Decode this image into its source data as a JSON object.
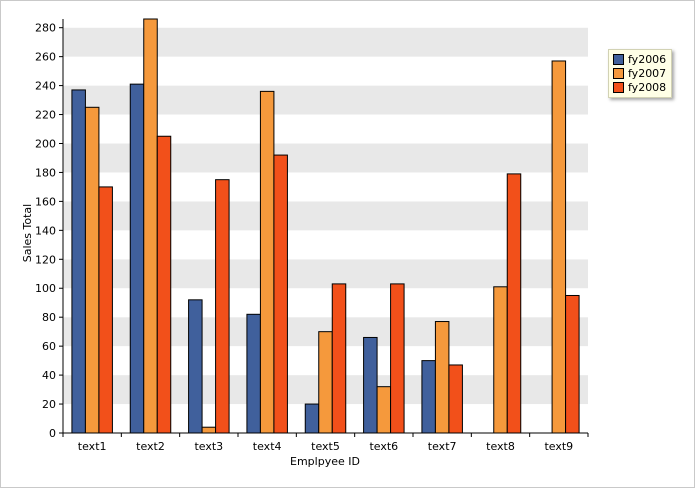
{
  "chart_data": {
    "type": "bar",
    "title": "",
    "xlabel": "Emplpyee ID",
    "ylabel": "Sales Total",
    "ylim": [
      0,
      286
    ],
    "yticks": [
      0,
      20,
      40,
      60,
      80,
      100,
      120,
      140,
      160,
      180,
      200,
      220,
      240,
      260,
      280
    ],
    "categories": [
      "text1",
      "text2",
      "text3",
      "text4",
      "text5",
      "text6",
      "text7",
      "text8",
      "text9"
    ],
    "series": [
      {
        "name": "fy2006",
        "color": "#40609c",
        "values": [
          237,
          241,
          92,
          82,
          20,
          66,
          50,
          0,
          0
        ]
      },
      {
        "name": "fy2007",
        "color": "#f5993c",
        "values": [
          225,
          286,
          4,
          236,
          70,
          32,
          77,
          101,
          257
        ]
      },
      {
        "name": "fy2008",
        "color": "#f2501a",
        "values": [
          170,
          205,
          175,
          192,
          103,
          103,
          47,
          179,
          95
        ]
      }
    ],
    "grid": "alternating horizontal bands",
    "legend_position": "right"
  }
}
